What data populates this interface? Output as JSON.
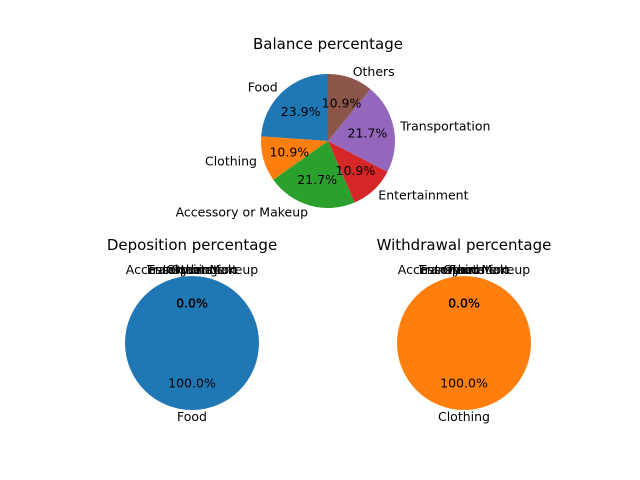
{
  "chart_data": [
    {
      "type": "pie",
      "title": "Balance percentage",
      "categories": [
        "Food",
        "Clothing",
        "Accessory or Makeup",
        "Entertainment",
        "Transportation",
        "Others"
      ],
      "values": [
        23.9,
        10.9,
        21.7,
        10.9,
        21.7,
        10.9
      ],
      "value_labels": [
        "23.9%",
        "10.9%",
        "21.7%",
        "10.9%",
        "21.7%",
        "10.9%"
      ],
      "colors": [
        "#1f77b4",
        "#ff7f0e",
        "#2ca02c",
        "#d62728",
        "#9467bd",
        "#8c564b"
      ]
    },
    {
      "type": "pie",
      "title": "Deposition percentage",
      "categories": [
        "Food",
        "Clothing",
        "Accessory or Makeup",
        "Entertainment",
        "Transportation",
        "Others"
      ],
      "values": [
        100.0,
        0.0,
        0.0,
        0.0,
        0.0,
        0.0
      ],
      "value_labels": [
        "100.0%",
        "0.0%",
        "0.0%",
        "0.0%",
        "0.0%",
        "0.0%"
      ],
      "colors": [
        "#1f77b4",
        "#ff7f0e",
        "#2ca02c",
        "#d62728",
        "#9467bd",
        "#8c564b"
      ]
    },
    {
      "type": "pie",
      "title": "Withdrawal percentage",
      "categories": [
        "Food",
        "Clothing",
        "Accessory or Makeup",
        "Entertainment",
        "Transportation",
        "Others"
      ],
      "values": [
        0.0,
        100.0,
        0.0,
        0.0,
        0.0,
        0.0
      ],
      "value_labels": [
        "0.0%",
        "100.0%",
        "0.0%",
        "0.0%",
        "0.0%",
        "0.0%"
      ],
      "colors": [
        "#1f77b4",
        "#ff7f0e",
        "#2ca02c",
        "#d62728",
        "#9467bd",
        "#8c564b"
      ]
    }
  ]
}
